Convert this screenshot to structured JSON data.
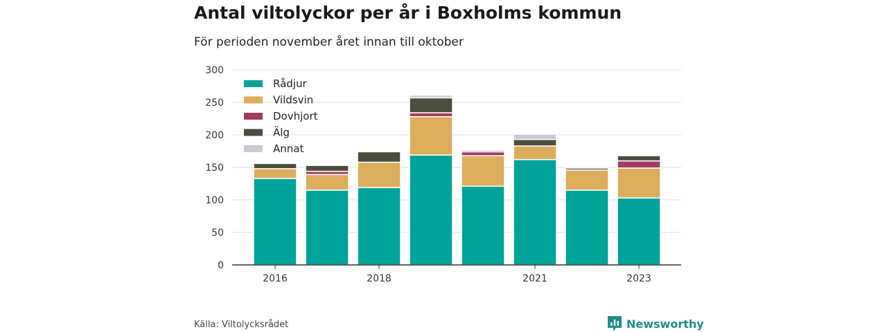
{
  "title": "Antal viltolyckor per år i Boxholms kommun",
  "subtitle": "För perioden november året innan till oktober",
  "source": "Källa: Viltolycksrådet",
  "brand": "Newsworthy",
  "colors": {
    "brand": "#1d8c8c",
    "axis": "#333333",
    "grid": "#dddddd"
  },
  "chart_data": {
    "type": "bar",
    "stacked": true,
    "categories": [
      "2016",
      "2017",
      "2018",
      "2019",
      "2020",
      "2021",
      "2022",
      "2023"
    ],
    "x_tick_labels": [
      "2016",
      "",
      "2018",
      "",
      "",
      "2021",
      "",
      "2023"
    ],
    "ylim": [
      0,
      300
    ],
    "yticks": [
      0,
      50,
      100,
      150,
      200,
      250,
      300
    ],
    "grid": true,
    "legend_position": "top-left",
    "series": [
      {
        "name": "Rådjur",
        "color": "#00a39a",
        "values": [
          133,
          115,
          119,
          169,
          121,
          162,
          115,
          103
        ]
      },
      {
        "name": "Vildsvin",
        "color": "#dbad5c",
        "values": [
          15,
          24,
          39,
          59,
          47,
          21,
          31,
          46
        ]
      },
      {
        "name": "Dovhjort",
        "color": "#a33c62",
        "values": [
          0,
          5,
          0,
          6,
          6,
          0,
          0,
          11
        ]
      },
      {
        "name": "Älg",
        "color": "#4c4d3e",
        "values": [
          8,
          9,
          16,
          23,
          2,
          10,
          3,
          8
        ]
      },
      {
        "name": "Annat",
        "color": "#c9c9d1",
        "values": [
          0,
          0,
          0,
          4,
          0,
          8,
          2,
          0
        ]
      }
    ]
  }
}
